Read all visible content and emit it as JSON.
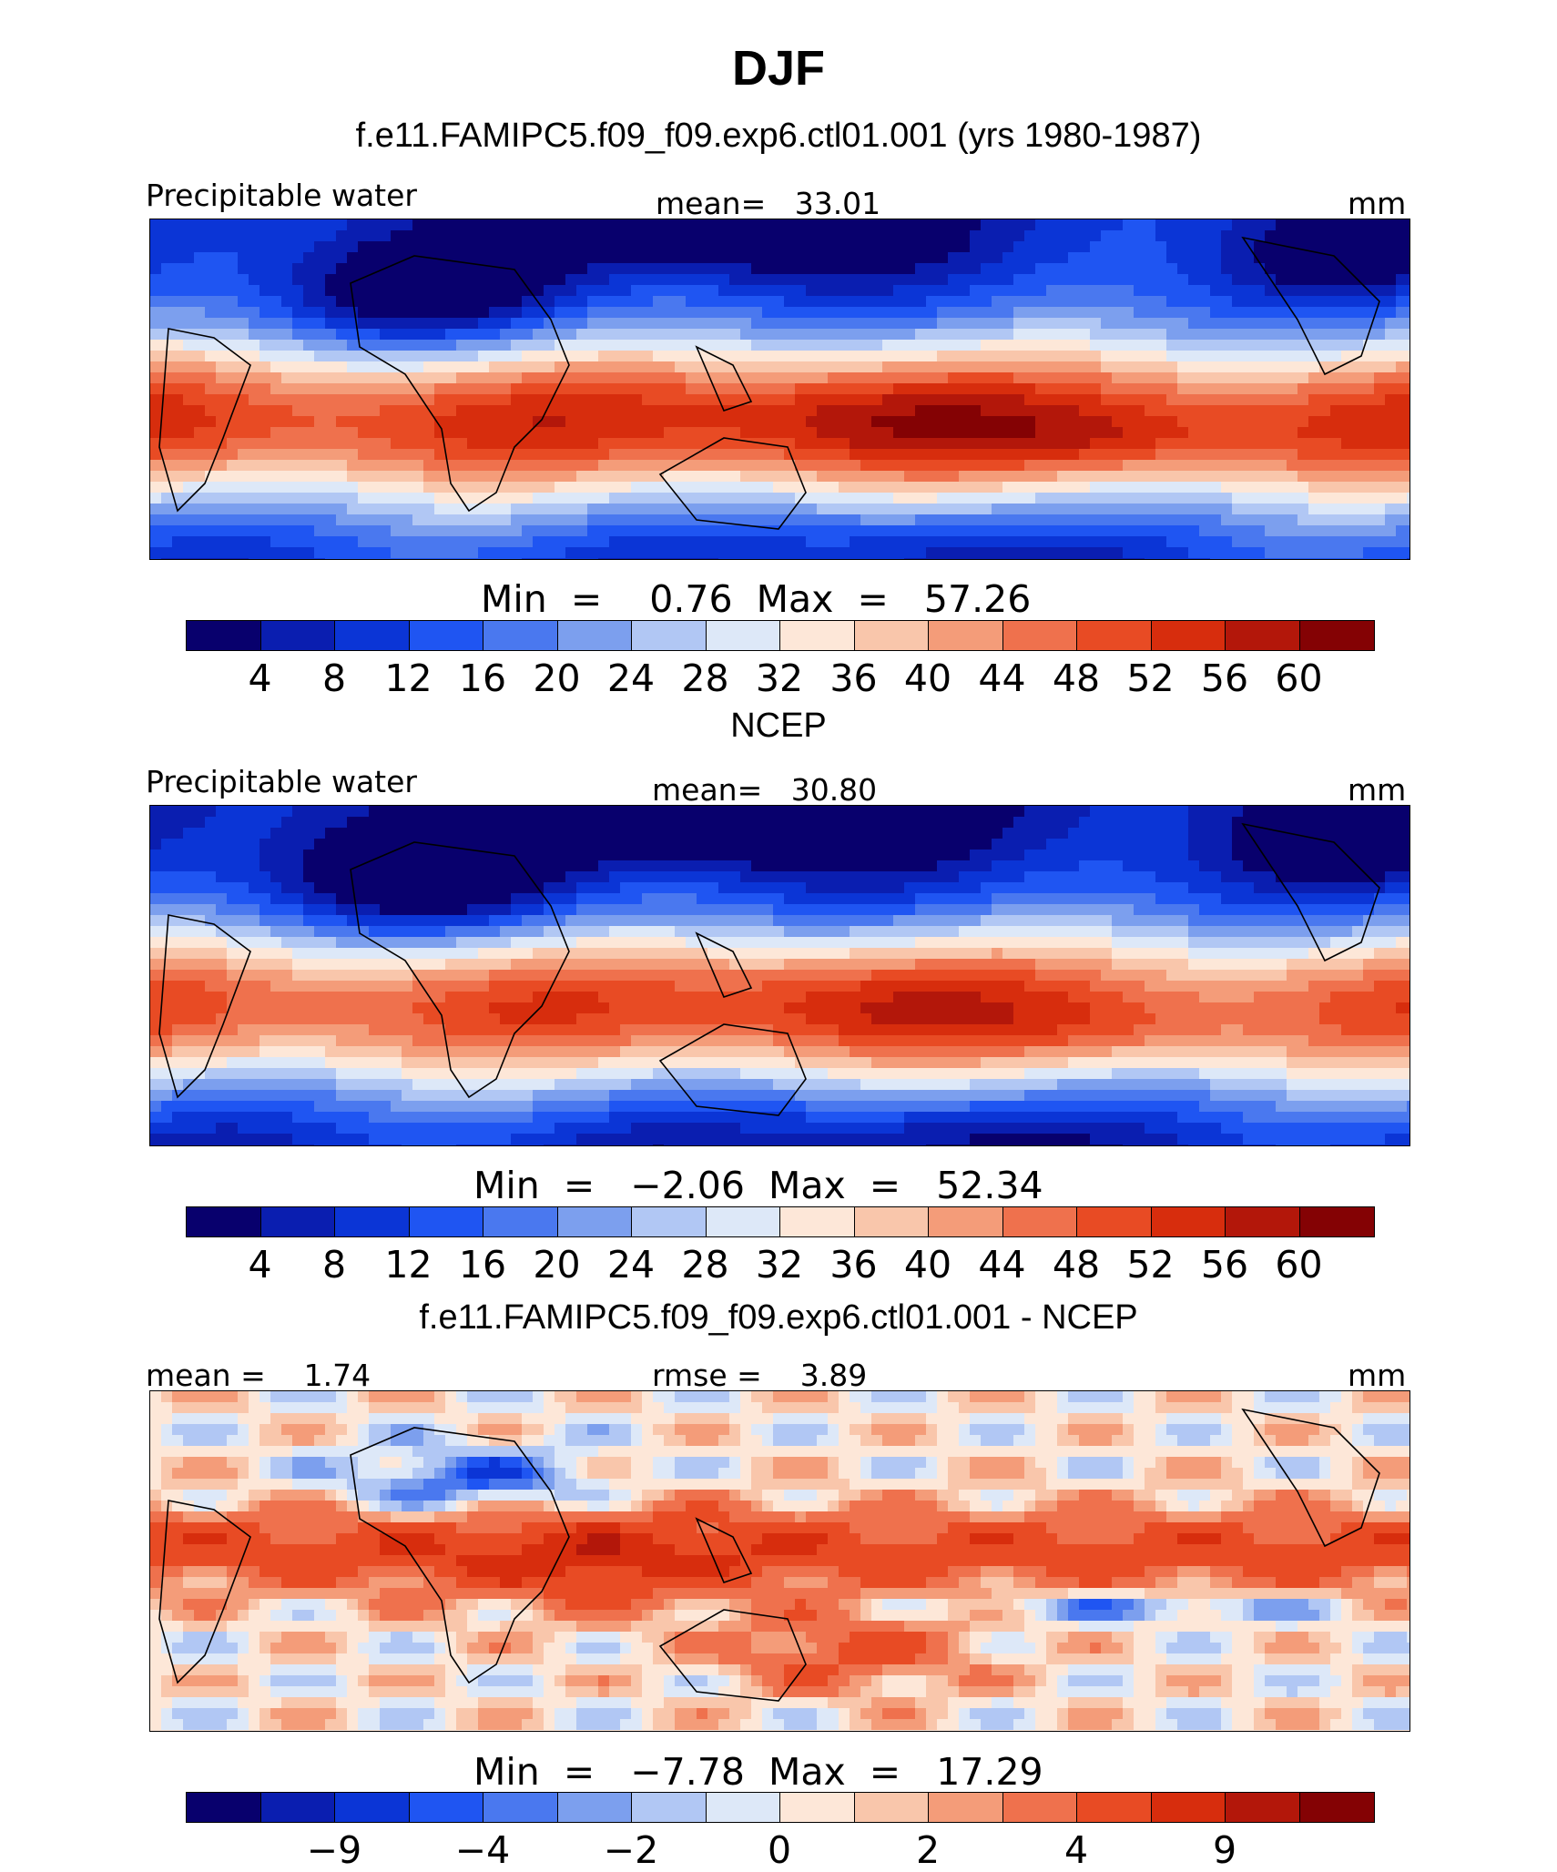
{
  "figure": {
    "title": "DJF",
    "colors": [
      "#08006d",
      "#0a1eb0",
      "#0b35d6",
      "#1f55f2",
      "#4a78ef",
      "#7c9fee",
      "#b1c7f4",
      "#dde8f8",
      "#fde7d8",
      "#f9c6ab",
      "#f49c79",
      "#ef714d",
      "#e84b24",
      "#d72d0d",
      "#b3170a",
      "#840204"
    ],
    "diff_colors": [
      "#08006d",
      "#0a1eb0",
      "#0b35d6",
      "#1f55f2",
      "#4a78ef",
      "#7c9fee",
      "#b1c7f4",
      "#dde8f8",
      "#fde7d8",
      "#f9c6ab",
      "#f49c79",
      "#ef714d",
      "#e84b24",
      "#d72d0d",
      "#b3170a",
      "#840204"
    ]
  },
  "panels": [
    {
      "title": "f.e11.FAMIPC5.f09_f09.exp6.ctl01.001 (yrs 1980-1987)",
      "left_label": "Precipitable water",
      "center_label": "mean=   33.01",
      "right_label": "mm",
      "minmax": "Min  =    0.76  Max  =   57.26",
      "ticks": [
        "4",
        "8",
        "12",
        "16",
        "20",
        "24",
        "28",
        "32",
        "36",
        "40",
        "44",
        "48",
        "52",
        "56",
        "60"
      ],
      "field": "model"
    },
    {
      "title": "NCEP",
      "left_label": "Precipitable water",
      "center_label": "mean=   30.80",
      "right_label": "mm",
      "minmax": "Min  =   −2.06  Max  =   52.34",
      "ticks": [
        "4",
        "8",
        "12",
        "16",
        "20",
        "24",
        "28",
        "32",
        "36",
        "40",
        "44",
        "48",
        "52",
        "56",
        "60"
      ],
      "field": "obs"
    },
    {
      "title": "f.e11.FAMIPC5.f09_f09.exp6.ctl01.001 - NCEP",
      "left_label": "mean =    1.74",
      "center_label": "rmse =    3.89",
      "right_label": "mm",
      "minmax": "Min  =   −7.78  Max  =   17.29",
      "ticks": [
        "−9",
        "−4",
        "−2",
        "0",
        "2",
        "4",
        "9"
      ],
      "field": "diff"
    }
  ]
}
